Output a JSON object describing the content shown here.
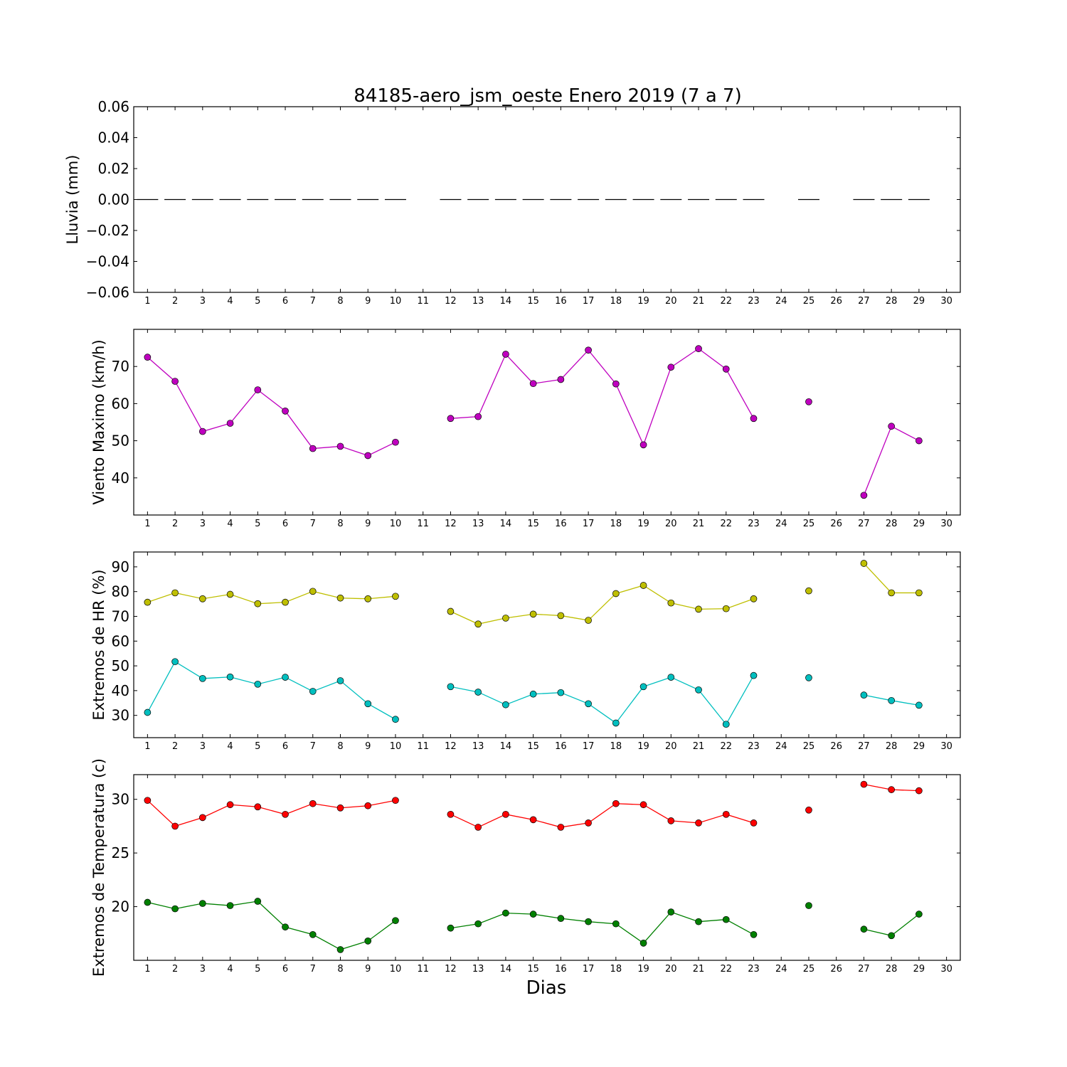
{
  "chart_data": {
    "type": "line",
    "title": "84185-aero_jsm_oeste Enero 2019  (7 a 7)",
    "xlabel": "Dias",
    "x": [
      1,
      2,
      3,
      4,
      5,
      6,
      7,
      8,
      9,
      10,
      11,
      12,
      13,
      14,
      15,
      16,
      17,
      18,
      19,
      20,
      21,
      22,
      23,
      24,
      25,
      26,
      27,
      28,
      29,
      30
    ],
    "xlim": [
      0.5,
      30.5
    ],
    "panels": [
      {
        "id": "lluvia",
        "ylabel": "Lluvia (mm)",
        "ylim": [
          -0.06,
          0.06
        ],
        "yticks": [
          0.06,
          0.04,
          0.02,
          0.0,
          -0.02,
          -0.04,
          -0.06
        ],
        "ytick_labels": [
          "0.06",
          "0.04",
          "0.02",
          "0.00",
          "−0.02",
          "−0.04",
          "−0.06"
        ],
        "style": "dash",
        "series": [
          {
            "color": "#000000",
            "values": [
              0,
              0,
              0,
              0,
              0,
              0,
              0,
              0,
              0,
              0,
              null,
              0,
              0,
              0,
              0,
              0,
              0,
              0,
              0,
              0,
              0,
              0,
              0,
              null,
              0,
              null,
              0,
              0,
              0,
              null
            ]
          }
        ]
      },
      {
        "id": "viento",
        "ylabel": "Viento Maximo (km/h)",
        "ylim": [
          30,
          80
        ],
        "yticks": [
          70,
          60,
          50,
          40
        ],
        "ytick_labels": [
          "70",
          "60",
          "50",
          "40"
        ],
        "style": "line",
        "series": [
          {
            "color": "#bf00bf",
            "values": [
              72.5,
              66,
              52.5,
              54.7,
              63.7,
              58,
              47.9,
              48.5,
              46,
              49.6,
              null,
              56,
              56.5,
              73.3,
              65.4,
              66.5,
              74.4,
              65.3,
              48.9,
              69.8,
              74.8,
              69.3,
              56,
              null,
              60.5,
              null,
              35.3,
              53.9,
              50,
              null
            ]
          }
        ]
      },
      {
        "id": "hr",
        "ylabel": "Extremos de HR (%)",
        "ylim": [
          21,
          96
        ],
        "yticks": [
          90,
          80,
          70,
          60,
          50,
          40,
          30
        ],
        "ytick_labels": [
          "90",
          "80",
          "70",
          "60",
          "50",
          "40",
          "30"
        ],
        "style": "line",
        "series": [
          {
            "color": "#bfbf00",
            "values": [
              75.7,
              79.5,
              77.1,
              78.9,
              75.1,
              75.7,
              80.1,
              77.4,
              77.1,
              78.1,
              null,
              72,
              66.9,
              69.3,
              70.9,
              70.3,
              68.4,
              79.2,
              82.5,
              75.4,
              72.9,
              73.1,
              77.1,
              null,
              80.3,
              null,
              91.4,
              79.5,
              79.5,
              null
            ]
          },
          {
            "color": "#00bfbf",
            "values": [
              31.2,
              51.7,
              44.9,
              45.5,
              42.6,
              45.4,
              39.7,
              44,
              34.7,
              28.4,
              null,
              41.6,
              39.4,
              34.3,
              38.6,
              39.2,
              34.7,
              26.9,
              41.6,
              45.4,
              40.3,
              26.4,
              46.1,
              null,
              45.2,
              null,
              38.2,
              36,
              34.1,
              null
            ]
          }
        ]
      },
      {
        "id": "temp",
        "ylabel": "Extremos de Temperatura (c)",
        "ylim": [
          15,
          32.3
        ],
        "yticks": [
          30,
          25,
          20
        ],
        "ytick_labels": [
          "30",
          "25",
          "20"
        ],
        "style": "line",
        "series": [
          {
            "color": "#ff0000",
            "values": [
              29.9,
              27.5,
              28.3,
              29.5,
              29.3,
              28.6,
              29.6,
              29.2,
              29.4,
              29.9,
              null,
              28.6,
              27.4,
              28.6,
              28.1,
              27.4,
              27.8,
              29.6,
              29.5,
              28,
              27.8,
              28.6,
              27.8,
              null,
              29,
              null,
              31.4,
              30.9,
              30.8,
              null
            ]
          },
          {
            "color": "#008000",
            "values": [
              20.4,
              19.8,
              20.3,
              20.1,
              20.5,
              18.1,
              17.4,
              16.0,
              16.8,
              18.7,
              null,
              18,
              18.4,
              19.4,
              19.3,
              18.9,
              18.6,
              18.4,
              16.6,
              19.5,
              18.6,
              18.8,
              17.4,
              null,
              20.1,
              null,
              17.9,
              17.3,
              19.3,
              null
            ]
          }
        ]
      }
    ]
  }
}
